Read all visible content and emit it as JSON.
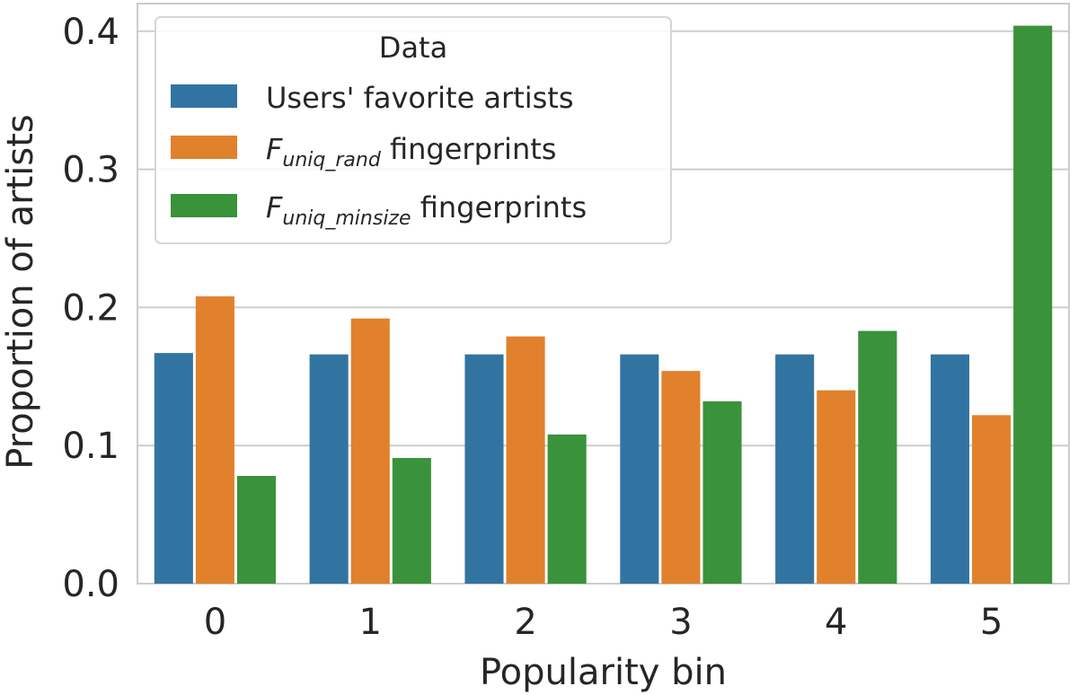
{
  "chart_data": {
    "type": "bar",
    "xlabel": "Popularity bin",
    "ylabel": "Proportion of artists",
    "categories": [
      "0",
      "1",
      "2",
      "3",
      "4",
      "5"
    ],
    "ylim": [
      0,
      0.42
    ],
    "yticks": [
      0.0,
      0.1,
      0.2,
      0.3,
      0.4
    ],
    "ytick_labels": [
      "0.0",
      "0.1",
      "0.2",
      "0.3",
      "0.4"
    ],
    "grid": "horizontal",
    "legend": {
      "title": "Data",
      "placement": "top-left"
    },
    "series": [
      {
        "name": "Users' favorite artists",
        "label_parts": {
          "main": "Users' favorite artists",
          "sub": "",
          "suffix": ""
        },
        "color": "#3274a1",
        "values": [
          0.167,
          0.166,
          0.166,
          0.166,
          0.166,
          0.166
        ]
      },
      {
        "name": "F_uniq_rand fingerprints",
        "label_parts": {
          "main": "F",
          "sub": "uniq_rand",
          "suffix": " fingerprints"
        },
        "color": "#e1812c",
        "values": [
          0.208,
          0.192,
          0.179,
          0.154,
          0.14,
          0.122
        ]
      },
      {
        "name": "F_uniq_minsize fingerprints",
        "label_parts": {
          "main": "F",
          "sub": "uniq_minsize",
          "suffix": " fingerprints"
        },
        "color": "#3a923a",
        "values": [
          0.078,
          0.091,
          0.108,
          0.132,
          0.183,
          0.404
        ]
      }
    ]
  }
}
